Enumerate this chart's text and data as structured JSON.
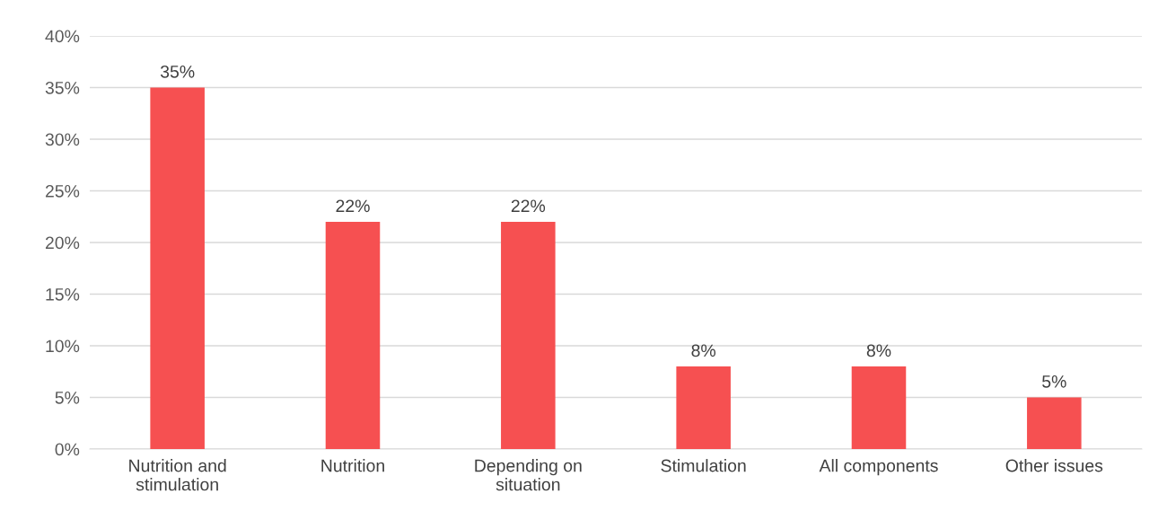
{
  "chart_data": {
    "type": "bar",
    "categories": [
      "Nutrition and\nstimulation",
      "Nutrition",
      "Depending on\nsituation",
      "Stimulation",
      "All components",
      "Other issues"
    ],
    "values": [
      35,
      22,
      22,
      8,
      8,
      5
    ],
    "value_labels": [
      "35%",
      "22%",
      "22%",
      "8%",
      "8%",
      "5%"
    ],
    "color": "#f65051",
    "ylim": [
      0,
      40
    ],
    "yticks": [
      {
        "value": 0,
        "label": "0%"
      },
      {
        "value": 5,
        "label": "5%"
      },
      {
        "value": 10,
        "label": "10%"
      },
      {
        "value": 15,
        "label": "15%"
      },
      {
        "value": 20,
        "label": "20%"
      },
      {
        "value": 25,
        "label": "25%"
      },
      {
        "value": 30,
        "label": "30%"
      },
      {
        "value": 35,
        "label": "35%"
      },
      {
        "value": 40,
        "label": "40%"
      }
    ],
    "grid": "y",
    "legend": false
  }
}
